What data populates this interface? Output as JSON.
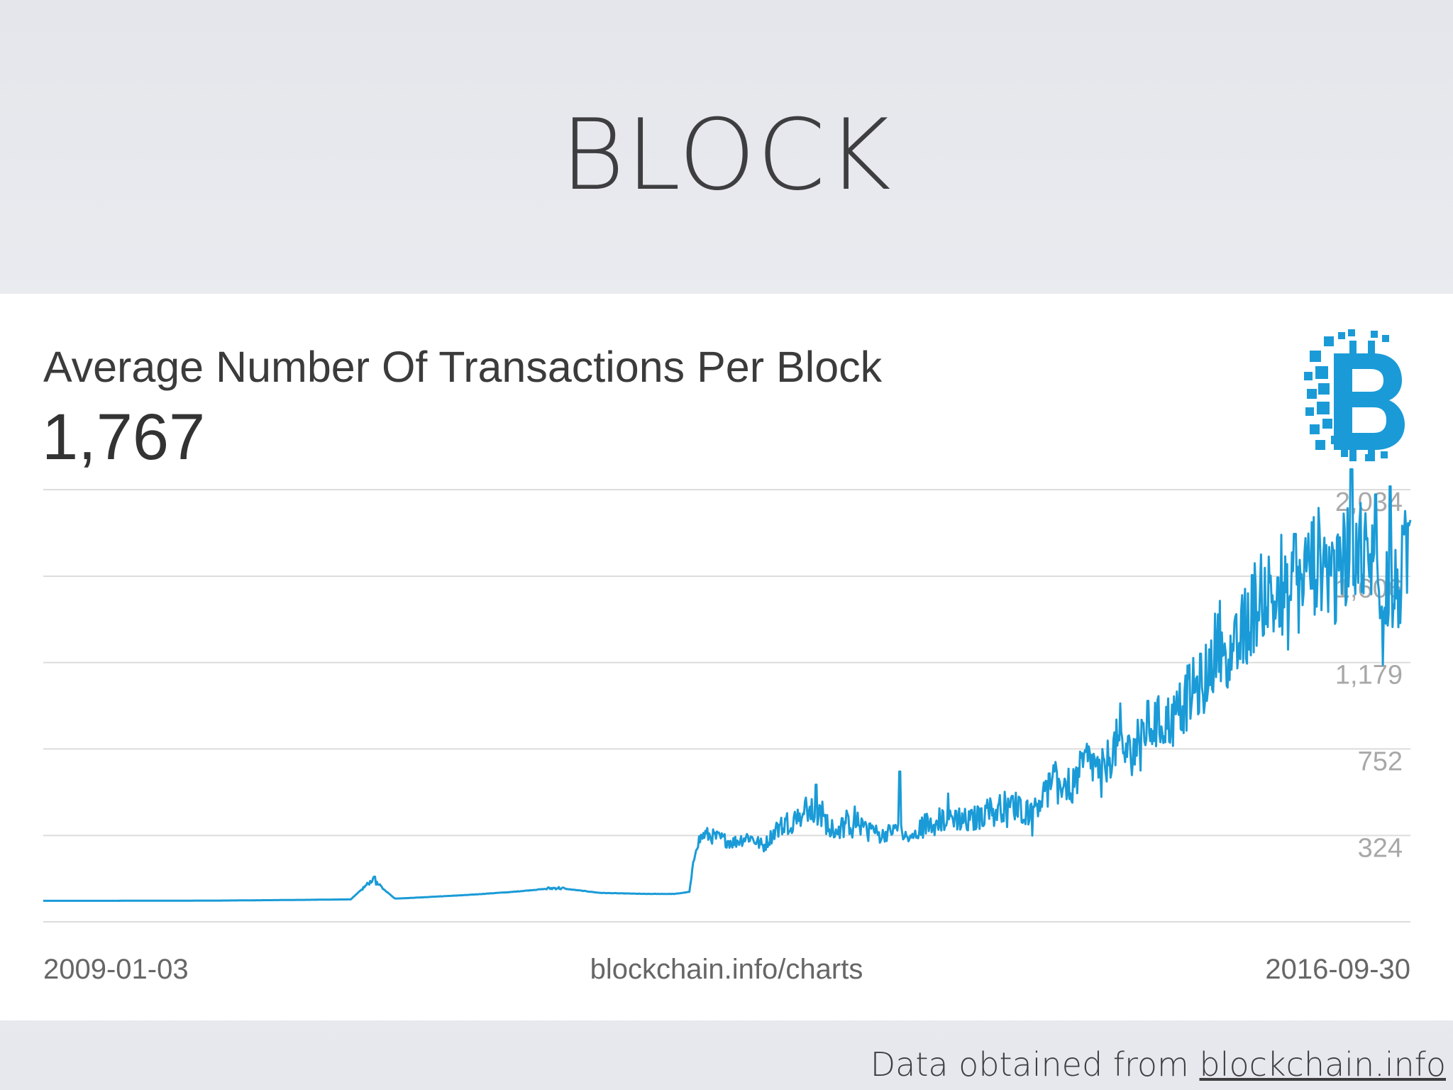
{
  "slide": {
    "title": "BLOCK",
    "credit_prefix": "Data obtained from ",
    "credit_link": "blockchain.info"
  },
  "chart_data": {
    "type": "line",
    "title": "Average Number Of Transactions Per Block",
    "headline_value": "1,767",
    "yticks": [
      "2,034",
      "1,606",
      "1,179",
      "752",
      "324"
    ],
    "ytick_values": [
      2034,
      1606,
      1179,
      752,
      324
    ],
    "ylim": [
      -103,
      2034
    ],
    "xlim": [
      "2009-01-03",
      "2016-09-30"
    ],
    "x_start_label": "2009-01-03",
    "x_end_label": "2016-09-30",
    "source": "blockchain.info/charts",
    "grid": true,
    "color": "#1a9bd7",
    "series": [
      {
        "x": [
          "2009-01-03",
          "2009-06-01",
          "2010-01-01",
          "2010-06-01",
          "2010-10-01",
          "2010-11-15",
          "2011-01-01",
          "2011-02-01",
          "2011-06-01",
          "2011-09-01",
          "2011-12-01",
          "2012-03-01",
          "2012-06-01",
          "2012-08-01",
          "2012-09-01",
          "2012-09-15",
          "2012-10-01",
          "2012-11-01",
          "2012-12-01",
          "2013-01-01",
          "2013-02-01",
          "2013-03-01",
          "2013-04-01",
          "2013-05-01",
          "2013-06-01",
          "2013-07-01",
          "2013-08-01",
          "2013-09-01",
          "2013-10-01",
          "2013-11-01",
          "2013-12-01",
          "2014-01-01",
          "2014-02-01",
          "2014-03-01",
          "2014-04-01",
          "2014-05-01",
          "2014-06-01",
          "2014-07-01",
          "2014-08-01",
          "2014-09-01",
          "2014-10-01",
          "2014-11-01",
          "2014-12-01",
          "2015-01-01",
          "2015-02-01",
          "2015-03-01",
          "2015-04-01",
          "2015-05-01",
          "2015-06-01",
          "2015-07-01",
          "2015-08-01",
          "2015-09-01",
          "2015-10-01",
          "2015-11-01",
          "2015-12-01",
          "2016-01-01",
          "2016-02-01",
          "2016-03-01",
          "2016-04-01",
          "2016-05-01",
          "2016-06-01",
          "2016-07-01",
          "2016-08-01",
          "2016-09-01",
          "2016-09-30"
        ],
        "y": [
          1,
          1,
          2,
          5,
          8,
          105,
          12,
          15,
          30,
          45,
          65,
          40,
          35,
          35,
          45,
          280,
          330,
          310,
          290,
          320,
          270,
          360,
          400,
          450,
          410,
          350,
          390,
          380,
          320,
          360,
          300,
          380,
          400,
          420,
          390,
          430,
          460,
          480,
          440,
          520,
          600,
          560,
          700,
          640,
          780,
          720,
          860,
          880,
          900,
          1020,
          1080,
          1300,
          1200,
          1400,
          1550,
          1450,
          1480,
          1650,
          1700,
          1550,
          1820,
          1700,
          1600,
          1500,
          1767
        ],
        "peaks": [
          {
            "x": "2010-11-20",
            "y": 120
          },
          {
            "x": "2013-05-20",
            "y": 575
          },
          {
            "x": "2013-11-10",
            "y": 640
          },
          {
            "x": "2015-07-10",
            "y": 850
          },
          {
            "x": "2015-11-01",
            "y": 1050
          },
          {
            "x": "2016-01-01",
            "y": 1600
          },
          {
            "x": "2016-02-05",
            "y": 1815
          },
          {
            "x": "2016-04-25",
            "y": 1735
          },
          {
            "x": "2016-06-01",
            "y": 2135
          },
          {
            "x": "2016-07-20",
            "y": 2010
          },
          {
            "x": "2016-08-20",
            "y": 2050
          }
        ]
      }
    ]
  }
}
